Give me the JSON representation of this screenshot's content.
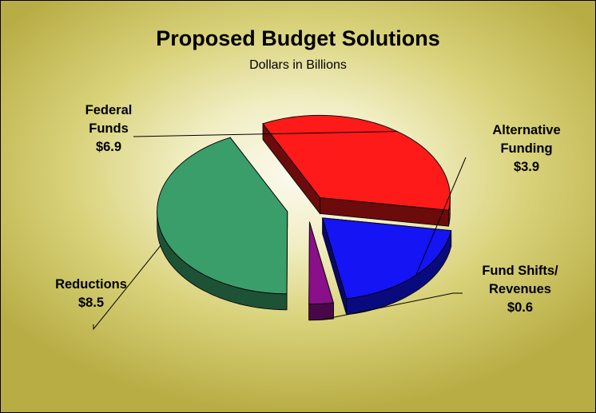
{
  "chart_data": {
    "type": "pie",
    "title": "Proposed Budget Solutions",
    "subtitle": "Dollars in Billions",
    "slices": [
      {
        "lines": [
          "Federal",
          "Funds",
          "$6.9"
        ],
        "value": 6.9,
        "color": "#ff1a1a"
      },
      {
        "lines": [
          "Alternative",
          "Funding",
          "$3.9"
        ],
        "value": 3.9,
        "color": "#1414f5"
      },
      {
        "lines": [
          "Fund Shifts/",
          "Revenues",
          "$0.6"
        ],
        "value": 0.6,
        "color": "#8a0f8a"
      },
      {
        "lines": [
          "Reductions",
          "$8.5"
        ],
        "value": 8.5,
        "color": "#3a9e6a"
      }
    ]
  }
}
